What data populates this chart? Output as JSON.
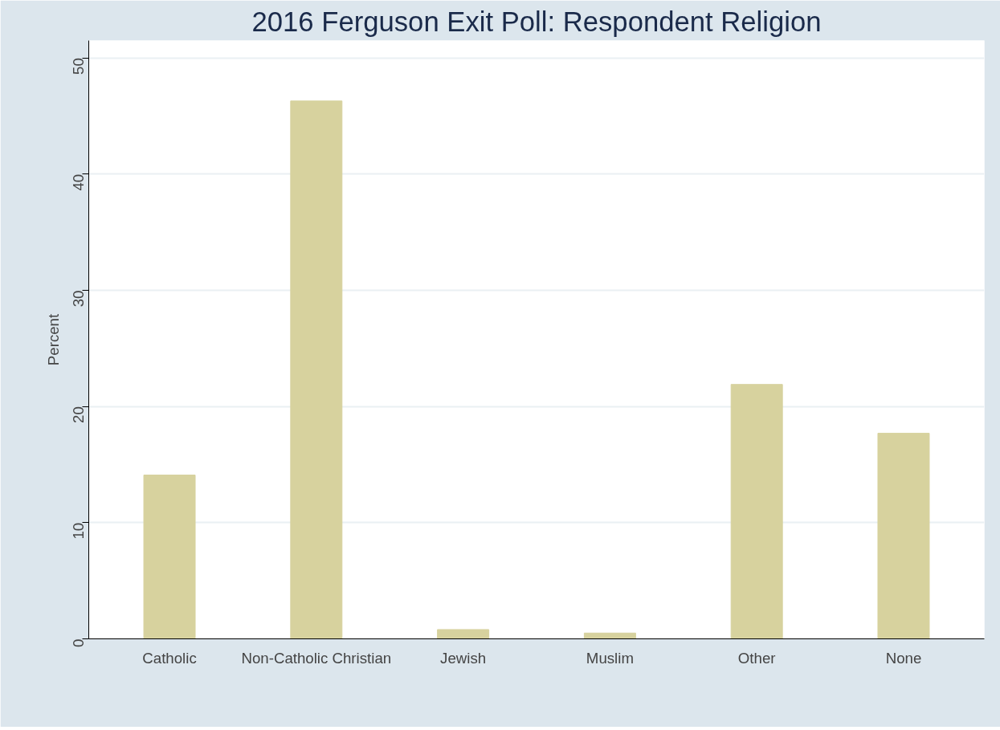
{
  "chart_data": {
    "type": "bar",
    "title": "2016 Ferguson Exit Poll: Respondent Religion",
    "ylabel": "Percent",
    "categories": [
      "Catholic",
      "Non-Catholic Christian",
      "Jewish",
      "Muslim",
      "Other",
      "None"
    ],
    "values": [
      14.1,
      46.3,
      0.8,
      0.5,
      21.9,
      17.7
    ],
    "color": "#d7d29e",
    "ylim": [
      0,
      51.5
    ],
    "yticks": [
      0,
      10,
      20,
      30,
      40,
      50
    ],
    "grid": "y"
  }
}
